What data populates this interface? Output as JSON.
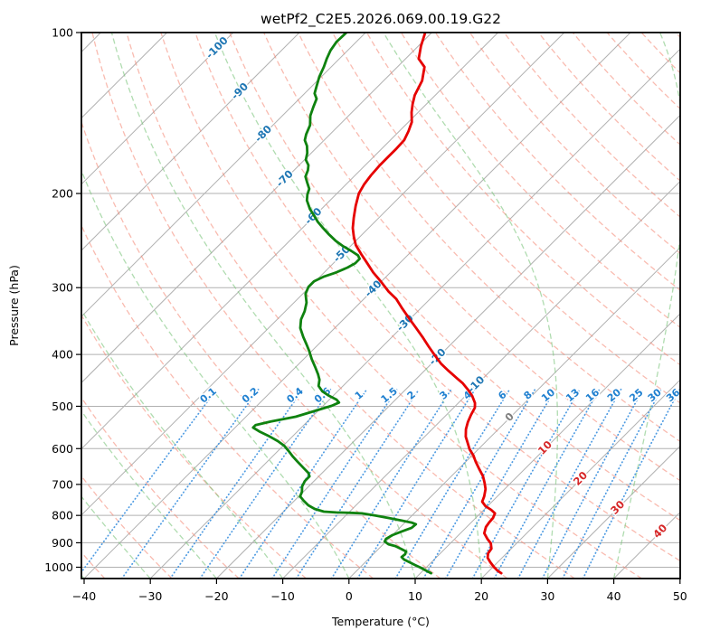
{
  "title": "wetPf2_C2E5.2026.069.00.19.G22",
  "axes": {
    "x_label": "Temperature (°C)",
    "y_label": "Pressure (hPa)",
    "x_tick_values": [
      -40,
      -30,
      -20,
      -10,
      0,
      10,
      20,
      30,
      40,
      50
    ],
    "x_tick_labels": [
      "−40",
      "−30",
      "−20",
      "−10",
      "0",
      "10",
      "20",
      "30",
      "40",
      "50"
    ],
    "y_tick_values": [
      100,
      200,
      300,
      400,
      500,
      600,
      700,
      800,
      900,
      1000
    ],
    "y_tick_labels": [
      "100",
      "200",
      "300",
      "400",
      "500",
      "600",
      "700",
      "800",
      "900",
      "1000"
    ],
    "x_range_c": [
      -40,
      50
    ],
    "pressure_range_hpa": [
      100,
      1050
    ],
    "skew_degrees": 45
  },
  "colors": {
    "temperature_curve": "#e60000",
    "dewpoint_curve": "#0f820f",
    "grid_gray": "#b0b0b0",
    "dry_adiabat": "#f4836f",
    "moist_adiabat": "#7cc47c",
    "mixing_ratio_line": "#4596e0",
    "mixing_ratio_label": "#2080d0",
    "isotherm_label_negative": "#1f77b4",
    "isotherm_label_zero": "#7f7f7f",
    "isotherm_label_positive": "#d62728",
    "spine": "#000000"
  },
  "chart_data": {
    "type": "line",
    "diagram": "skew-t-log-p",
    "title": "wetPf2_C2E5.2026.069.00.19.G22",
    "xlabel": "Temperature (°C)",
    "ylabel": "Pressure (hPa)",
    "xlim_c": [
      -40,
      50
    ],
    "plim_hpa": [
      100,
      1050
    ],
    "grid": true,
    "isobars_hpa": [
      100,
      200,
      300,
      400,
      500,
      600,
      700,
      800,
      900,
      1000
    ],
    "isotherms_c": {
      "start": -120,
      "end": 50,
      "step": 10
    },
    "dry_adiabats_theta_k": {
      "start": 213,
      "end": 463,
      "step": 10
    },
    "moist_adiabats_surface_c": {
      "start": -120,
      "end": 40,
      "step": 10
    },
    "mixing_ratio_lines_g_kg": [
      0.1,
      0.2,
      0.4,
      0.6,
      1,
      1.5,
      2,
      3,
      4,
      6,
      8,
      10,
      13,
      16,
      20,
      25,
      30,
      36
    ],
    "mixing_ratio_label_pressure_hpa": 482,
    "mixing_ratio_line_top_hpa": 465,
    "isotherm_labels": [
      {
        "t": -100,
        "p": 107
      },
      {
        "t": -90,
        "p": 129
      },
      {
        "t": -80,
        "p": 155
      },
      {
        "t": -70,
        "p": 188
      },
      {
        "t": -60,
        "p": 221
      },
      {
        "t": -50,
        "p": 260
      },
      {
        "t": -40,
        "p": 302
      },
      {
        "t": -30,
        "p": 350
      },
      {
        "t": -20,
        "p": 405
      },
      {
        "t": -10,
        "p": 456
      },
      {
        "t": 0,
        "p": 525
      },
      {
        "t": 10,
        "p": 599
      },
      {
        "t": 20,
        "p": 684
      },
      {
        "t": 30,
        "p": 775
      },
      {
        "t": 40,
        "p": 858
      }
    ],
    "series": [
      {
        "name": "temperature",
        "color": "#e60000",
        "points_p_t": [
          [
            100,
            -71.0
          ],
          [
            106,
            -69.6
          ],
          [
            112,
            -68.0
          ],
          [
            116,
            -65.9
          ],
          [
            123,
            -64.2
          ],
          [
            131,
            -63.1
          ],
          [
            136,
            -62.1
          ],
          [
            141,
            -61.0
          ],
          [
            147,
            -59.5
          ],
          [
            153,
            -58.6
          ],
          [
            159,
            -57.9
          ],
          [
            165,
            -57.8
          ],
          [
            170,
            -57.8
          ],
          [
            177,
            -57.8
          ],
          [
            185,
            -57.6
          ],
          [
            192,
            -57.3
          ],
          [
            200,
            -56.7
          ],
          [
            211,
            -55.3
          ],
          [
            222,
            -53.8
          ],
          [
            232,
            -52.4
          ],
          [
            241,
            -50.9
          ],
          [
            250,
            -49.3
          ],
          [
            260,
            -47.1
          ],
          [
            270,
            -44.9
          ],
          [
            281,
            -42.6
          ],
          [
            292,
            -40.1
          ],
          [
            305,
            -37.4
          ],
          [
            315,
            -35.1
          ],
          [
            328,
            -32.8
          ],
          [
            342,
            -30.3
          ],
          [
            357,
            -27.7
          ],
          [
            371,
            -25.4
          ],
          [
            386,
            -23.1
          ],
          [
            400,
            -21.0
          ],
          [
            416,
            -18.6
          ],
          [
            429,
            -16.4
          ],
          [
            443,
            -14.0
          ],
          [
            453,
            -12.3
          ],
          [
            466,
            -10.5
          ],
          [
            478,
            -9.0
          ],
          [
            493,
            -7.5
          ],
          [
            503,
            -6.8
          ],
          [
            519,
            -6.3
          ],
          [
            535,
            -5.7
          ],
          [
            552,
            -4.9
          ],
          [
            570,
            -3.8
          ],
          [
            585,
            -2.6
          ],
          [
            602,
            -1.3
          ],
          [
            618,
            0.2
          ],
          [
            635,
            1.5
          ],
          [
            656,
            3.2
          ],
          [
            676,
            4.8
          ],
          [
            695,
            6.0
          ],
          [
            714,
            7.1
          ],
          [
            737,
            8.0
          ],
          [
            754,
            8.5
          ],
          [
            769,
            9.7
          ],
          [
            781,
            11.1
          ],
          [
            793,
            12.2
          ],
          [
            809,
            12.6
          ],
          [
            825,
            12.7
          ],
          [
            841,
            12.9
          ],
          [
            864,
            13.6
          ],
          [
            885,
            14.9
          ],
          [
            902,
            16.1
          ],
          [
            923,
            17.0
          ],
          [
            942,
            17.2
          ],
          [
            960,
            17.8
          ],
          [
            979,
            18.9
          ],
          [
            998,
            20.1
          ],
          [
            1014,
            21.2
          ],
          [
            1026,
            22.2
          ]
        ]
      },
      {
        "name": "dewpoint",
        "color": "#0f820f",
        "points_p_t": [
          [
            100,
            -82.9
          ],
          [
            104,
            -83.0
          ],
          [
            108,
            -82.6
          ],
          [
            112,
            -81.9
          ],
          [
            116,
            -81.1
          ],
          [
            121,
            -80.3
          ],
          [
            126,
            -79.3
          ],
          [
            130,
            -78.5
          ],
          [
            133,
            -77.4
          ],
          [
            138,
            -76.6
          ],
          [
            143,
            -75.8
          ],
          [
            149,
            -74.4
          ],
          [
            155,
            -73.6
          ],
          [
            159,
            -72.9
          ],
          [
            163,
            -71.7
          ],
          [
            168,
            -70.6
          ],
          [
            173,
            -69.8
          ],
          [
            177,
            -68.6
          ],
          [
            181,
            -67.9
          ],
          [
            186,
            -67.3
          ],
          [
            191,
            -66.1
          ],
          [
            196,
            -64.9
          ],
          [
            201,
            -64.3
          ],
          [
            206,
            -63.5
          ],
          [
            214,
            -61.7
          ],
          [
            220,
            -60.1
          ],
          [
            226,
            -58.6
          ],
          [
            232,
            -56.9
          ],
          [
            238,
            -55.2
          ],
          [
            245,
            -53.1
          ],
          [
            251,
            -51.1
          ],
          [
            256,
            -49.2
          ],
          [
            261,
            -47.5
          ],
          [
            265,
            -46.7
          ],
          [
            270,
            -46.7
          ],
          [
            275,
            -47.2
          ],
          [
            281,
            -48.2
          ],
          [
            286,
            -49.4
          ],
          [
            292,
            -50.2
          ],
          [
            299,
            -50.2
          ],
          [
            308,
            -49.6
          ],
          [
            320,
            -48.1
          ],
          [
            332,
            -47.1
          ],
          [
            344,
            -46.4
          ],
          [
            357,
            -45.2
          ],
          [
            371,
            -43.4
          ],
          [
            383,
            -41.8
          ],
          [
            394,
            -40.4
          ],
          [
            408,
            -38.8
          ],
          [
            422,
            -37.1
          ],
          [
            436,
            -35.5
          ],
          [
            446,
            -34.5
          ],
          [
            458,
            -33.7
          ],
          [
            469,
            -32.3
          ],
          [
            478,
            -30.6
          ],
          [
            486,
            -28.9
          ],
          [
            492,
            -28.1
          ],
          [
            499,
            -28.7
          ],
          [
            509,
            -30.3
          ],
          [
            523,
            -32.5
          ],
          [
            534,
            -35.5
          ],
          [
            542,
            -37.3
          ],
          [
            548,
            -37.3
          ],
          [
            557,
            -35.8
          ],
          [
            568,
            -33.7
          ],
          [
            581,
            -31.5
          ],
          [
            593,
            -29.8
          ],
          [
            607,
            -28.3
          ],
          [
            621,
            -26.9
          ],
          [
            635,
            -25.4
          ],
          [
            651,
            -23.7
          ],
          [
            666,
            -22.1
          ],
          [
            676,
            -21.4
          ],
          [
            690,
            -21.4
          ],
          [
            706,
            -21.0
          ],
          [
            723,
            -20.2
          ],
          [
            737,
            -19.8
          ],
          [
            751,
            -18.6
          ],
          [
            766,
            -17.2
          ],
          [
            778,
            -15.7
          ],
          [
            787,
            -13.9
          ],
          [
            790,
            -11.9
          ],
          [
            791,
            -9.7
          ],
          [
            793,
            -7.9
          ],
          [
            800,
            -5.6
          ],
          [
            809,
            -3.1
          ],
          [
            818,
            -0.8
          ],
          [
            825,
            1.0
          ],
          [
            831,
            1.9
          ],
          [
            844,
            1.8
          ],
          [
            858,
            0.8
          ],
          [
            871,
            0.0
          ],
          [
            885,
            -0.4
          ],
          [
            895,
            -0.2
          ],
          [
            906,
            0.8
          ],
          [
            913,
            2.1
          ],
          [
            924,
            3.4
          ],
          [
            934,
            4.5
          ],
          [
            945,
            4.8
          ],
          [
            957,
            4.7
          ],
          [
            968,
            5.5
          ],
          [
            979,
            6.7
          ],
          [
            991,
            8.0
          ],
          [
            1002,
            9.2
          ],
          [
            1014,
            10.4
          ],
          [
            1026,
            11.6
          ]
        ]
      }
    ]
  }
}
